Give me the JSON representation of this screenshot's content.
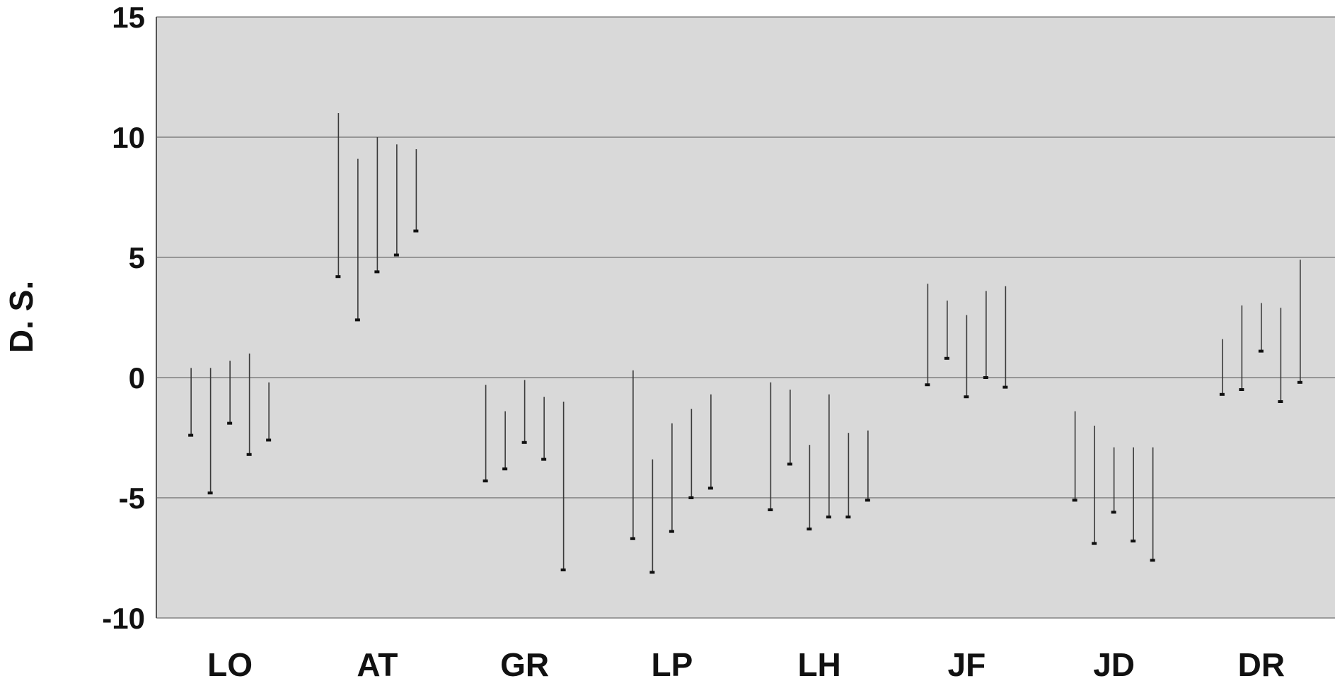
{
  "chart_data": {
    "type": "range",
    "title": "",
    "xlabel": "",
    "ylabel": "D. S.",
    "ylim": [
      -10,
      15
    ],
    "yticks": [
      15,
      10,
      5,
      0,
      -5,
      -10
    ],
    "grid": true,
    "legend": "none",
    "background_color": "#d9d9d9",
    "line_color": "#3a3a3a",
    "categories": [
      "LO",
      "AT",
      "GR",
      "LP",
      "LH",
      "JF",
      "JD",
      "DR"
    ],
    "groups": [
      {
        "category": "LO",
        "ranges": [
          {
            "top": 0.4,
            "bottom": -2.4
          },
          {
            "top": 0.4,
            "bottom": -4.8
          },
          {
            "top": 0.7,
            "bottom": -1.9
          },
          {
            "top": 1.0,
            "bottom": -3.2
          },
          {
            "top": -0.2,
            "bottom": -2.6
          }
        ]
      },
      {
        "category": "AT",
        "ranges": [
          {
            "top": 11.0,
            "bottom": 4.2
          },
          {
            "top": 9.1,
            "bottom": 2.4
          },
          {
            "top": 10.0,
            "bottom": 4.4
          },
          {
            "top": 9.7,
            "bottom": 5.1
          },
          {
            "top": 9.5,
            "bottom": 6.1
          }
        ]
      },
      {
        "category": "GR",
        "ranges": [
          {
            "top": -0.3,
            "bottom": -4.3
          },
          {
            "top": -1.4,
            "bottom": -3.8
          },
          {
            "top": -0.1,
            "bottom": -2.7
          },
          {
            "top": -0.8,
            "bottom": -3.4
          },
          {
            "top": -1.0,
            "bottom": -8.0
          }
        ]
      },
      {
        "category": "LP",
        "ranges": [
          {
            "top": 0.3,
            "bottom": -6.7
          },
          {
            "top": -3.4,
            "bottom": -8.1
          },
          {
            "top": -1.9,
            "bottom": -6.4
          },
          {
            "top": -1.3,
            "bottom": -5.0
          },
          {
            "top": -0.7,
            "bottom": -4.6
          }
        ]
      },
      {
        "category": "LH",
        "ranges": [
          {
            "top": -0.2,
            "bottom": -5.5
          },
          {
            "top": -0.5,
            "bottom": -3.6
          },
          {
            "top": -2.8,
            "bottom": -6.3
          },
          {
            "top": -0.7,
            "bottom": -5.8
          },
          {
            "top": -2.3,
            "bottom": -5.8
          },
          {
            "top": -2.2,
            "bottom": -5.1
          }
        ]
      },
      {
        "category": "JF",
        "ranges": [
          {
            "top": 3.9,
            "bottom": -0.3
          },
          {
            "top": 3.2,
            "bottom": 0.8
          },
          {
            "top": 2.6,
            "bottom": -0.8
          },
          {
            "top": 3.6,
            "bottom": 0.0
          },
          {
            "top": 3.8,
            "bottom": -0.4
          }
        ]
      },
      {
        "category": "JD",
        "ranges": [
          {
            "top": -1.4,
            "bottom": -5.1
          },
          {
            "top": -2.0,
            "bottom": -6.9
          },
          {
            "top": -2.9,
            "bottom": -5.6
          },
          {
            "top": -2.9,
            "bottom": -6.8
          },
          {
            "top": -2.9,
            "bottom": -7.6
          }
        ]
      },
      {
        "category": "DR",
        "ranges": [
          {
            "top": 1.6,
            "bottom": -0.7
          },
          {
            "top": 3.0,
            "bottom": -0.5
          },
          {
            "top": 3.1,
            "bottom": 1.1
          },
          {
            "top": 2.9,
            "bottom": -1.0
          },
          {
            "top": 4.9,
            "bottom": -0.2
          }
        ]
      }
    ]
  }
}
